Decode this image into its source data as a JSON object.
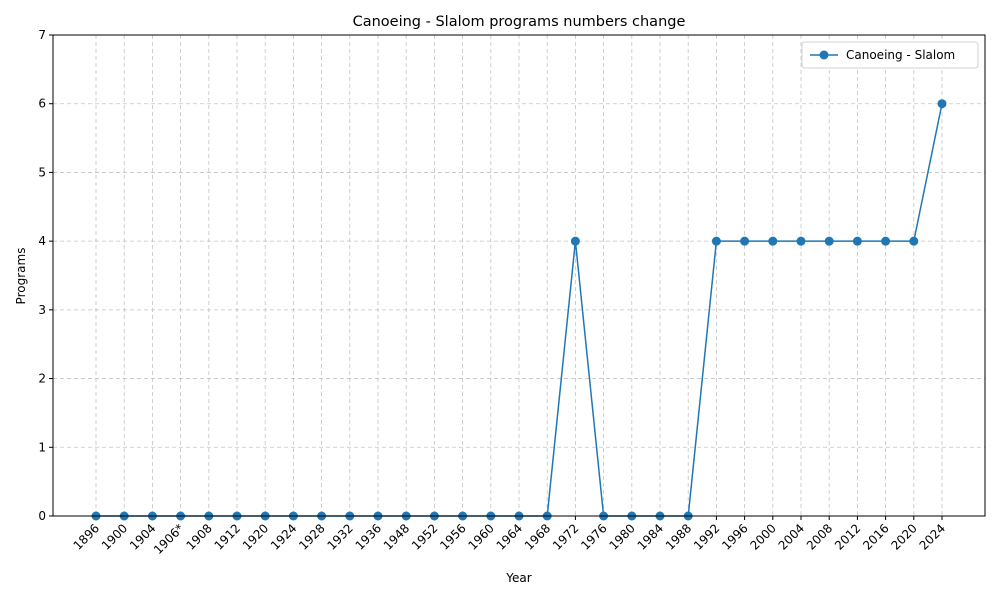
{
  "chart_data": {
    "type": "line",
    "title": "Canoeing - Slalom programs numbers change",
    "xlabel": "Year",
    "ylabel": "Programs",
    "categories": [
      "1896",
      "1900",
      "1904",
      "1906*",
      "1908",
      "1912",
      "1920",
      "1924",
      "1928",
      "1932",
      "1936",
      "1948",
      "1952",
      "1956",
      "1960",
      "1964",
      "1968",
      "1972",
      "1976",
      "1980",
      "1984",
      "1988",
      "1992",
      "1996",
      "2000",
      "2004",
      "2008",
      "2012",
      "2016",
      "2020",
      "2024"
    ],
    "series": [
      {
        "name": "Canoeing - Slalom",
        "color": "#1f77b4",
        "marker": "circle",
        "values": [
          0,
          0,
          0,
          0,
          0,
          0,
          0,
          0,
          0,
          0,
          0,
          0,
          0,
          0,
          0,
          0,
          0,
          4,
          0,
          0,
          0,
          0,
          4,
          4,
          4,
          4,
          4,
          4,
          4,
          4,
          6
        ]
      }
    ],
    "ylim": [
      0,
      7
    ],
    "yticks": [
      0,
      1,
      2,
      3,
      4,
      5,
      6,
      7
    ],
    "grid": true,
    "legend_position": "top-right"
  }
}
